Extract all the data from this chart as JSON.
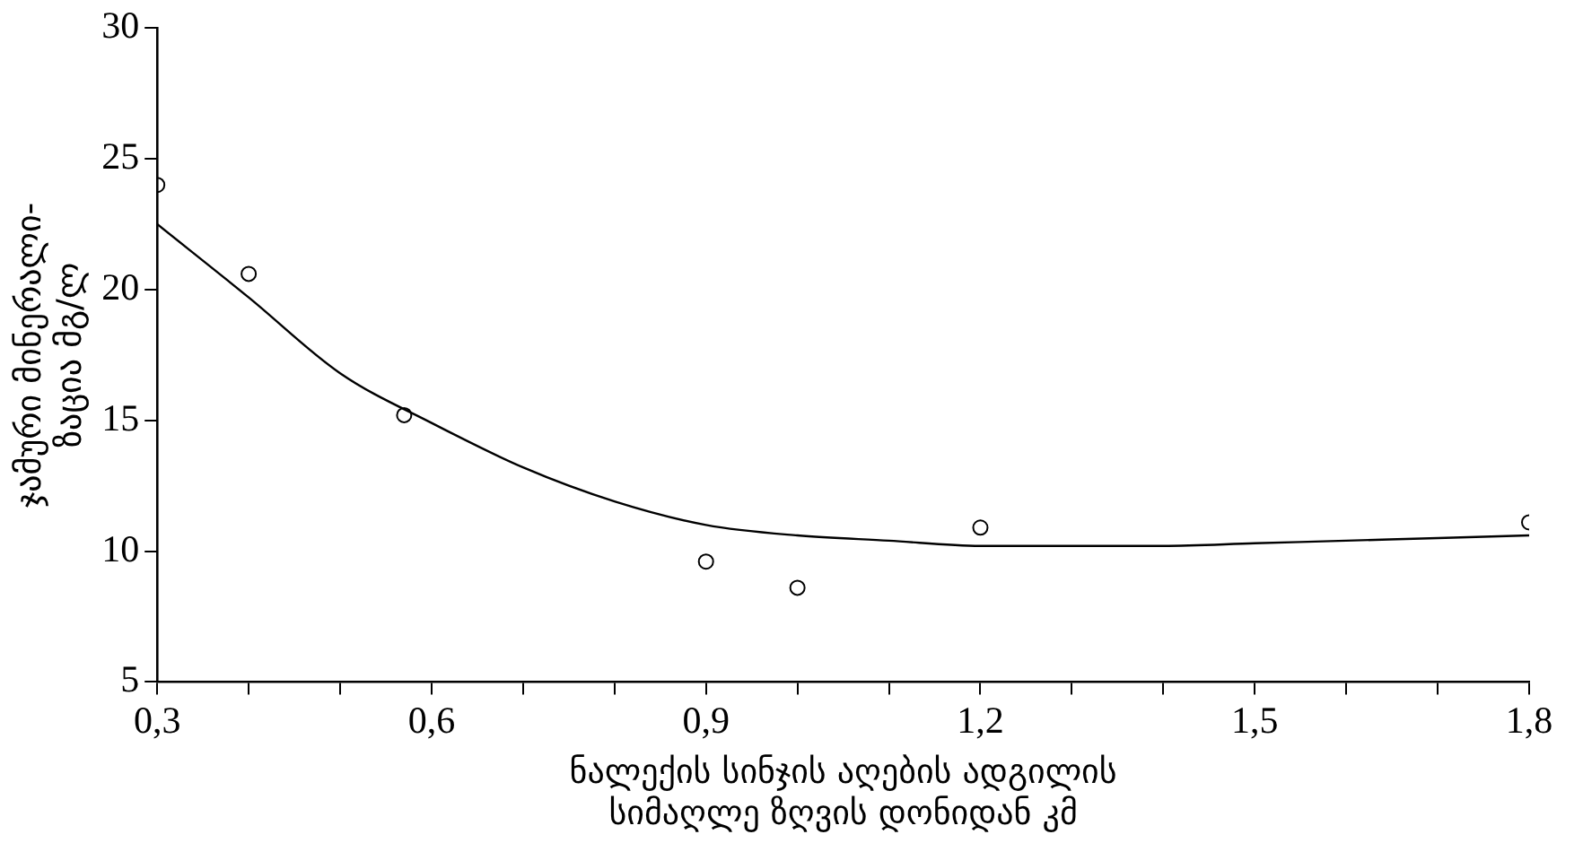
{
  "chart_data": {
    "type": "scatter",
    "xlabel": "ნალექის სინჯის აღების ადგილის სიმაღლე ზღვის დონიდან კმ",
    "ylabel": "ჯამური მინერალი-ზაცია მგ/ლ",
    "xlim": [
      0.3,
      1.8
    ],
    "xticks": [
      {
        "value": 0.3,
        "label": "0,3"
      },
      {
        "value": 0.4,
        "label": null
      },
      {
        "value": 0.5,
        "label": null
      },
      {
        "value": 0.6,
        "label": "0,6"
      },
      {
        "value": 0.7,
        "label": null
      },
      {
        "value": 0.8,
        "label": null
      },
      {
        "value": 0.9,
        "label": "0,9"
      },
      {
        "value": 1.0,
        "label": null
      },
      {
        "value": 1.1,
        "label": null
      },
      {
        "value": 1.2,
        "label": "1,2"
      },
      {
        "value": 1.3,
        "label": null
      },
      {
        "value": 1.4,
        "label": null
      },
      {
        "value": 1.5,
        "label": "1,5"
      },
      {
        "value": 1.6,
        "label": null
      },
      {
        "value": 1.7,
        "label": null
      },
      {
        "value": 1.8,
        "label": "1,8"
      }
    ],
    "ylim": [
      5,
      30
    ],
    "yticks": [
      5,
      10,
      15,
      20,
      25,
      30
    ],
    "grid": false,
    "legend": false,
    "series": [
      {
        "marker": "circle",
        "color": "#000000",
        "x": [
          0.3,
          0.4,
          0.57,
          0.9,
          1.0,
          1.2,
          1.8
        ],
        "values": [
          24.0,
          20.6,
          15.2,
          9.6,
          8.6,
          10.9,
          11.1
        ]
      },
      {
        "type": "line",
        "marker": "none",
        "line_style": "solid",
        "color": "#000000",
        "x": [
          0.3,
          0.4,
          0.5,
          0.6,
          0.7,
          0.8,
          0.9,
          1.0,
          1.1,
          1.2,
          1.3,
          1.4,
          1.5,
          1.6,
          1.7,
          1.8
        ],
        "values": [
          22.5,
          19.7,
          16.8,
          14.9,
          13.2,
          11.9,
          11.0,
          10.6,
          10.4,
          10.2,
          10.2,
          10.2,
          10.3,
          10.4,
          10.5,
          10.6
        ]
      }
    ]
  }
}
